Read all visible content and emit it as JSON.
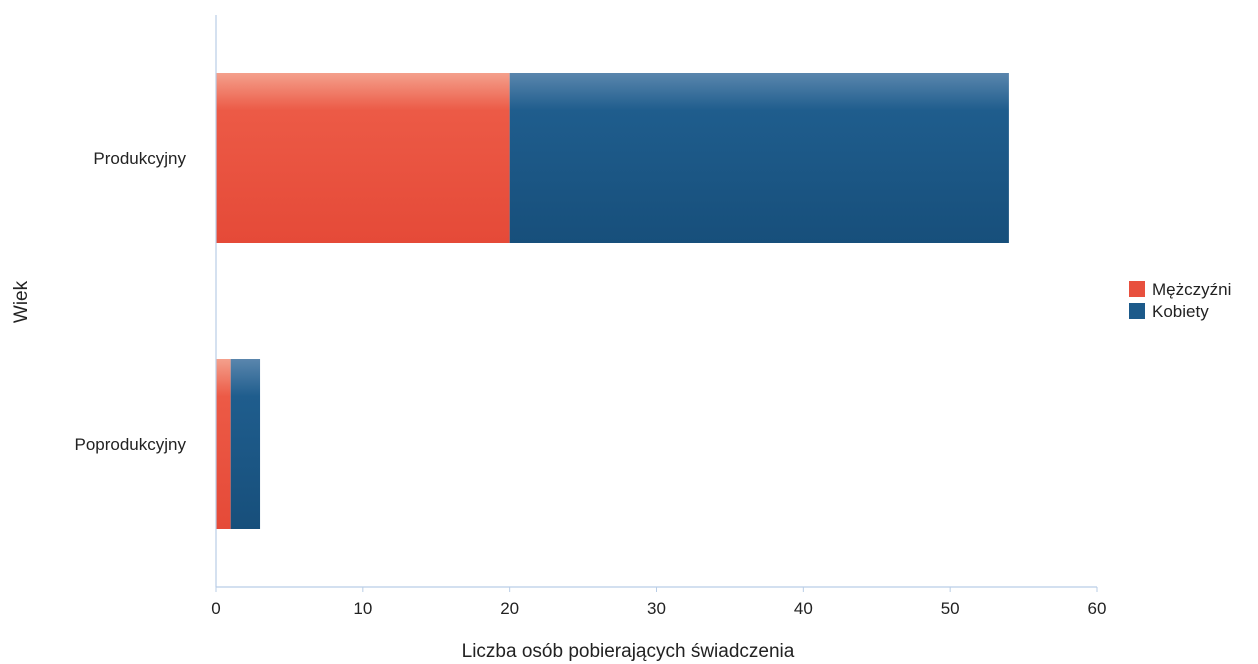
{
  "chart_data": {
    "type": "bar",
    "orientation": "horizontal",
    "stacked": true,
    "title": "",
    "xlabel": "Liczba osób pobierających świadczenia",
    "ylabel": "Wiek",
    "categories": [
      "Produkcyjny",
      "Poprodukcyjny"
    ],
    "series": [
      {
        "name": "Mężczyźni",
        "values": [
          20,
          1
        ],
        "color": "#e8503e"
      },
      {
        "name": "Kobiety",
        "values": [
          34,
          2
        ],
        "color": "#1c5a8a"
      }
    ],
    "xlim": [
      0,
      60
    ],
    "xticks": [
      0,
      10,
      20,
      30,
      40,
      50,
      60
    ],
    "grid": false,
    "legend_position": "right"
  }
}
